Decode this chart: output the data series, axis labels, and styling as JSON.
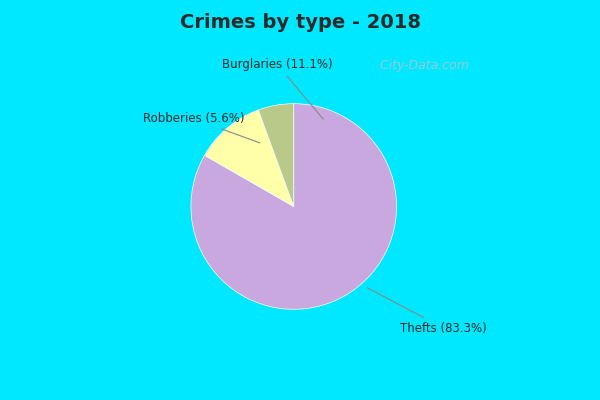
{
  "title": "Crimes by type - 2018",
  "slices": [
    83.3,
    11.1,
    5.6
  ],
  "labels": [
    "Thefts (83.3%)",
    "Burglaries (11.1%)",
    "Robberies (5.6%)"
  ],
  "colors": [
    "#c9a8e0",
    "#ffffaa",
    "#b8c98a"
  ],
  "background_top": "#00e8ff",
  "background_main": "#d4eedc",
  "title_color": "#2a2a2a",
  "label_color": "#2a2a2a",
  "startangle": 90,
  "watermark": " City-Data.com",
  "title_fontsize": 14,
  "label_fontsize": 8.5,
  "top_bar_height": 0.115,
  "bottom_bar_height": 0.07
}
